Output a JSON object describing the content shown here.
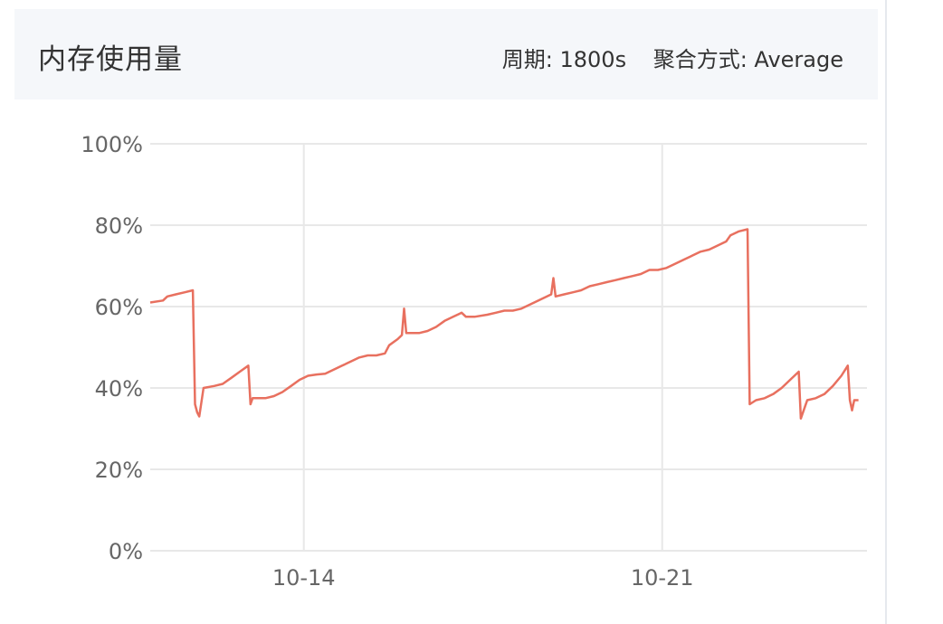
{
  "panel": {
    "title": "内存使用量",
    "period_label": "周期: 1800s",
    "aggregation_label": "聚合方式: Average"
  },
  "colors": {
    "line": "#e8705f",
    "grid": "#e8e8e8",
    "header_bg": "#f5f7fa"
  },
  "chart_data": {
    "type": "line",
    "title": "",
    "xlabel": "",
    "ylabel": "",
    "x_ticks": [
      "10-14",
      "10-21"
    ],
    "y_ticks": [
      "0%",
      "20%",
      "40%",
      "60%",
      "80%",
      "100%"
    ],
    "ylim": [
      0,
      100
    ],
    "xlim": [
      "10-11 00:00",
      "10-25 00:00"
    ],
    "grid": true,
    "legend": "none",
    "series": [
      {
        "name": "",
        "points": [
          [
            "10-11 00:00",
            61
          ],
          [
            "10-11 06:00",
            61.5
          ],
          [
            "10-11 08:00",
            62.5
          ],
          [
            "10-11 12:00",
            63
          ],
          [
            "10-11 16:00",
            63.5
          ],
          [
            "10-11 20:00",
            64
          ],
          [
            "10-11 21:00",
            36
          ],
          [
            "10-11 22:00",
            34
          ],
          [
            "10-11 23:00",
            33
          ],
          [
            "10-12 01:00",
            40
          ],
          [
            "10-12 06:00",
            40.5
          ],
          [
            "10-12 10:00",
            41
          ],
          [
            "10-12 14:00",
            42.5
          ],
          [
            "10-12 18:00",
            44
          ],
          [
            "10-12 22:00",
            45.5
          ],
          [
            "10-12 23:00",
            36
          ],
          [
            "10-13 00:00",
            37.5
          ],
          [
            "10-13 06:00",
            37.5
          ],
          [
            "10-13 10:00",
            38
          ],
          [
            "10-13 14:00",
            39
          ],
          [
            "10-13 18:00",
            40.5
          ],
          [
            "10-13 22:00",
            42
          ],
          [
            "10-14 02:00",
            43
          ],
          [
            "10-14 06:00",
            43.3
          ],
          [
            "10-14 10:00",
            43.5
          ],
          [
            "10-14 14:00",
            44.5
          ],
          [
            "10-14 18:00",
            45.5
          ],
          [
            "10-14 22:00",
            46.5
          ],
          [
            "10-15 02:00",
            47.5
          ],
          [
            "10-15 06:00",
            48
          ],
          [
            "10-15 10:00",
            48
          ],
          [
            "10-15 14:00",
            48.5
          ],
          [
            "10-15 16:00",
            50.5
          ],
          [
            "10-15 20:00",
            52
          ],
          [
            "10-15 22:00",
            53
          ],
          [
            "10-15 23:00",
            59.5
          ],
          [
            "10-16 00:00",
            53.5
          ],
          [
            "10-16 06:00",
            53.5
          ],
          [
            "10-16 10:00",
            54
          ],
          [
            "10-16 14:00",
            55
          ],
          [
            "10-16 18:00",
            56.5
          ],
          [
            "10-16 22:00",
            57.5
          ],
          [
            "10-17 02:00",
            58.5
          ],
          [
            "10-17 04:00",
            57.5
          ],
          [
            "10-17 08:00",
            57.5
          ],
          [
            "10-17 14:00",
            58
          ],
          [
            "10-17 18:00",
            58.5
          ],
          [
            "10-17 22:00",
            59
          ],
          [
            "10-18 02:00",
            59
          ],
          [
            "10-18 06:00",
            59.5
          ],
          [
            "10-18 10:00",
            60.5
          ],
          [
            "10-18 14:00",
            61.5
          ],
          [
            "10-18 18:00",
            62.5
          ],
          [
            "10-18 20:00",
            63
          ],
          [
            "10-18 21:00",
            67
          ],
          [
            "10-18 22:00",
            62.5
          ],
          [
            "10-19 02:00",
            63
          ],
          [
            "10-19 06:00",
            63.5
          ],
          [
            "10-19 10:00",
            64
          ],
          [
            "10-19 14:00",
            65
          ],
          [
            "10-19 18:00",
            65.5
          ],
          [
            "10-19 22:00",
            66
          ],
          [
            "10-20 02:00",
            66.5
          ],
          [
            "10-20 06:00",
            67
          ],
          [
            "10-20 10:00",
            67.5
          ],
          [
            "10-20 14:00",
            68
          ],
          [
            "10-20 18:00",
            69
          ],
          [
            "10-20 22:00",
            69
          ],
          [
            "10-21 02:00",
            69.5
          ],
          [
            "10-21 06:00",
            70.5
          ],
          [
            "10-21 10:00",
            71.5
          ],
          [
            "10-21 14:00",
            72.5
          ],
          [
            "10-21 18:00",
            73.5
          ],
          [
            "10-21 22:00",
            74
          ],
          [
            "10-22 02:00",
            75
          ],
          [
            "10-22 06:00",
            76
          ],
          [
            "10-22 08:00",
            77.5
          ],
          [
            "10-22 12:00",
            78.5
          ],
          [
            "10-22 16:00",
            79
          ],
          [
            "10-22 17:00",
            36
          ],
          [
            "10-22 20:00",
            37
          ],
          [
            "10-23 00:00",
            37.5
          ],
          [
            "10-23 04:00",
            38.5
          ],
          [
            "10-23 08:00",
            40
          ],
          [
            "10-23 12:00",
            42
          ],
          [
            "10-23 16:00",
            44
          ],
          [
            "10-23 17:00",
            32.5
          ],
          [
            "10-23 20:00",
            37
          ],
          [
            "10-24 00:00",
            37.5
          ],
          [
            "10-24 04:00",
            38.5
          ],
          [
            "10-24 08:00",
            40.5
          ],
          [
            "10-24 12:00",
            43
          ],
          [
            "10-24 15:00",
            45.5
          ],
          [
            "10-24 16:00",
            37
          ],
          [
            "10-24 17:00",
            34.5
          ],
          [
            "10-24 18:00",
            37
          ],
          [
            "10-24 20:00",
            37
          ]
        ]
      }
    ]
  }
}
